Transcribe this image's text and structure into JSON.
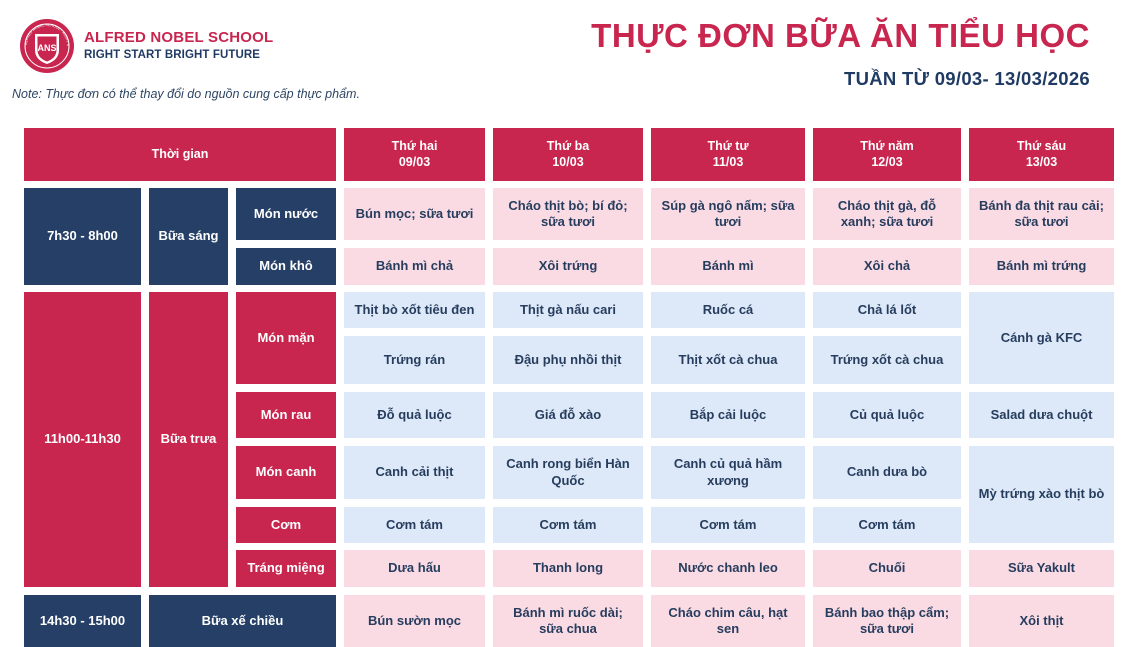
{
  "school": {
    "name": "ALFRED NOBEL SCHOOL",
    "slogan": "RIGHT START BRIGHT FUTURE",
    "logo_text": "ANS",
    "logo_ring_text": "ALFRED NOBEL SCHOOL · RIGHT START BRIGHT FUTURE"
  },
  "title": "THỰC ĐƠN BỮA ĂN TIỂU HỌC",
  "week": "TUẦN TỪ 09/03- 13/03/2026",
  "note": "Note: Thực đơn có thể thay đổi do nguồn cung cấp thực phẩm.",
  "colors": {
    "accent_red": "#c8264f",
    "navy": "#253f66",
    "pink_cell": "#fadbe4",
    "blue_cell": "#dde9f8"
  },
  "table": {
    "time_header": "Thời gian",
    "days": [
      {
        "name": "Thứ hai",
        "date": "09/03"
      },
      {
        "name": "Thứ ba",
        "date": "10/03"
      },
      {
        "name": "Thứ tư",
        "date": "11/03"
      },
      {
        "name": "Thứ năm",
        "date": "12/03"
      },
      {
        "name": "Thứ sáu",
        "date": "13/03"
      }
    ],
    "breakfast": {
      "time": "7h30 - 8h00",
      "meal": "Bữa sáng",
      "mon_nuoc": {
        "label": "Món nước",
        "values": [
          "Bún mọc; sữa tươi",
          "Cháo thịt bò; bí đỏ; sữa tươi",
          "Súp gà ngô nấm; sữa tươi",
          "Cháo thịt gà, đỗ xanh; sữa tươi",
          "Bánh đa thịt rau cải; sữa tươi"
        ]
      },
      "mon_kho": {
        "label": "Món khô",
        "values": [
          "Bánh mì chả",
          "Xôi trứng",
          "Bánh mì",
          "Xôi chả",
          "Bánh mì trứng"
        ]
      }
    },
    "lunch": {
      "time": "11h00-11h30",
      "meal": "Bữa trưa",
      "mon_man": {
        "label": "Món mặn",
        "row1": [
          "Thịt bò xốt tiêu đen",
          "Thịt gà nấu cari",
          "Ruốc cá",
          "Chả lá lốt"
        ],
        "row2": [
          "Trứng rán",
          "Đậu phụ nhồi thịt",
          "Thịt xốt cà chua",
          "Trứng xốt cà chua"
        ],
        "friday": "Cánh gà KFC"
      },
      "mon_rau": {
        "label": "Món rau",
        "values": [
          "Đỗ quả luộc",
          "Giá đỗ xào",
          "Bắp cải luộc",
          "Củ quả luộc",
          "Salad dưa chuột"
        ]
      },
      "mon_canh": {
        "label": "Món canh",
        "values": [
          "Canh cải thịt",
          "Canh rong biển Hàn Quốc",
          "Canh củ quả hầm xương",
          "Canh dưa bò"
        ]
      },
      "com": {
        "label": "Cơm",
        "values": [
          "Cơm tám",
          "Cơm tám",
          "Cơm tám",
          "Cơm tám"
        ]
      },
      "friday_canh_com": "Mỳ trứng xào thịt bò",
      "trang_mieng": {
        "label": "Tráng miệng",
        "values": [
          "Dưa hấu",
          "Thanh long",
          "Nước chanh leo",
          "Chuối",
          "Sữa Yakult"
        ]
      }
    },
    "snack": {
      "time": "14h30 - 15h00",
      "meal": "Bữa xế chiều",
      "values": [
        "Bún sườn mọc",
        "Bánh mì ruốc dài; sữa chua",
        "Cháo chim câu, hạt sen",
        "Bánh bao thập cẩm; sữa tươi",
        "Xôi thịt"
      ]
    }
  }
}
